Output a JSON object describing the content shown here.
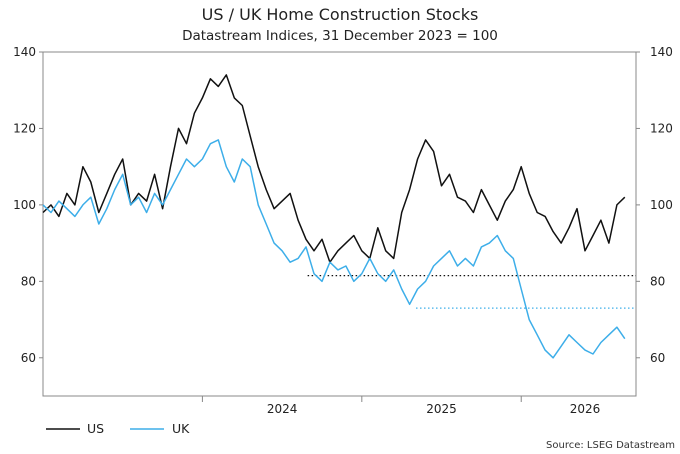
{
  "chart_data": {
    "type": "line",
    "title": "US / UK Home Construction Stocks",
    "subtitle": "Datastream Indices, 31 December 2023 = 100",
    "source": "Source: LSEG Datastream",
    "ylim": [
      50,
      140
    ],
    "yticks": [
      60,
      80,
      100,
      120,
      140
    ],
    "xlim": [
      2023.0,
      2026.72
    ],
    "year_labels": [
      {
        "label": "2024",
        "x": 2024.5
      },
      {
        "label": "2025",
        "x": 2025.5
      },
      {
        "label": "2026",
        "x": 2026.4
      }
    ],
    "year_ticks": [
      2024.0,
      2025.0,
      2026.0
    ],
    "colors": {
      "US": "#111111",
      "UK": "#3daee9"
    },
    "series": [
      {
        "name": "US",
        "x": [
          2023.0,
          2023.05,
          2023.1,
          2023.15,
          2023.2,
          2023.25,
          2023.3,
          2023.35,
          2023.4,
          2023.45,
          2023.5,
          2023.55,
          2023.6,
          2023.65,
          2023.7,
          2023.75,
          2023.8,
          2023.85,
          2023.9,
          2023.95,
          2024.0,
          2024.05,
          2024.1,
          2024.15,
          2024.2,
          2024.25,
          2024.3,
          2024.35,
          2024.4,
          2024.45,
          2024.5,
          2024.55,
          2024.6,
          2024.65,
          2024.7,
          2024.75,
          2024.8,
          2024.85,
          2024.9,
          2024.95,
          2025.0,
          2025.05,
          2025.1,
          2025.15,
          2025.2,
          2025.25,
          2025.3,
          2025.35,
          2025.4,
          2025.45,
          2025.5,
          2025.55,
          2025.6,
          2025.65,
          2025.7,
          2025.75,
          2025.8,
          2025.85,
          2025.9,
          2025.95,
          2026.0,
          2026.05,
          2026.1,
          2026.15,
          2026.2,
          2026.25,
          2026.3,
          2026.35,
          2026.4,
          2026.45,
          2026.5,
          2026.55,
          2026.6,
          2026.65
        ],
        "y": [
          98,
          100,
          97,
          103,
          100,
          110,
          106,
          98,
          103,
          108,
          112,
          100,
          103,
          101,
          108,
          99,
          110,
          120,
          116,
          124,
          128,
          133,
          131,
          134,
          128,
          126,
          118,
          110,
          104,
          99,
          101,
          103,
          96,
          91,
          88,
          91,
          85,
          88,
          90,
          92,
          88,
          86,
          94,
          88,
          86,
          98,
          104,
          112,
          117,
          114,
          105,
          108,
          102,
          101,
          98,
          104,
          100,
          96,
          101,
          104,
          110,
          103,
          98,
          97,
          93,
          90,
          94,
          99,
          88,
          92,
          96,
          90,
          100,
          102
        ]
      },
      {
        "name": "UK",
        "x": [
          2023.0,
          2023.05,
          2023.1,
          2023.15,
          2023.2,
          2023.25,
          2023.3,
          2023.35,
          2023.4,
          2023.45,
          2023.5,
          2023.55,
          2023.6,
          2023.65,
          2023.7,
          2023.75,
          2023.8,
          2023.85,
          2023.9,
          2023.95,
          2024.0,
          2024.05,
          2024.1,
          2024.15,
          2024.2,
          2024.25,
          2024.3,
          2024.35,
          2024.4,
          2024.45,
          2024.5,
          2024.55,
          2024.6,
          2024.65,
          2024.7,
          2024.75,
          2024.8,
          2024.85,
          2024.9,
          2024.95,
          2025.0,
          2025.05,
          2025.1,
          2025.15,
          2025.2,
          2025.25,
          2025.3,
          2025.35,
          2025.4,
          2025.45,
          2025.5,
          2025.55,
          2025.6,
          2025.65,
          2025.7,
          2025.75,
          2025.8,
          2025.85,
          2025.9,
          2025.95,
          2026.0,
          2026.05,
          2026.1,
          2026.15,
          2026.2,
          2026.25,
          2026.3,
          2026.35,
          2026.4,
          2026.45,
          2026.5,
          2026.55,
          2026.6,
          2026.65
        ],
        "y": [
          100,
          98,
          101,
          99,
          97,
          100,
          102,
          95,
          99,
          104,
          108,
          100,
          102,
          98,
          103,
          100,
          104,
          108,
          112,
          110,
          112,
          116,
          117,
          110,
          106,
          112,
          110,
          100,
          95,
          90,
          88,
          85,
          86,
          89,
          82,
          80,
          85,
          83,
          84,
          80,
          82,
          86,
          82,
          80,
          83,
          78,
          74,
          78,
          80,
          84,
          86,
          88,
          84,
          86,
          84,
          89,
          90,
          92,
          88,
          86,
          78,
          70,
          66,
          62,
          60,
          63,
          66,
          64,
          62,
          61,
          64,
          66,
          68,
          65
        ]
      }
    ],
    "reference_lines": [
      {
        "series": "US",
        "y": 81.5,
        "x_start": 2024.66,
        "x_end": 2026.72
      },
      {
        "series": "UK",
        "y": 73,
        "x_start": 2025.34,
        "x_end": 2026.72
      }
    ]
  }
}
